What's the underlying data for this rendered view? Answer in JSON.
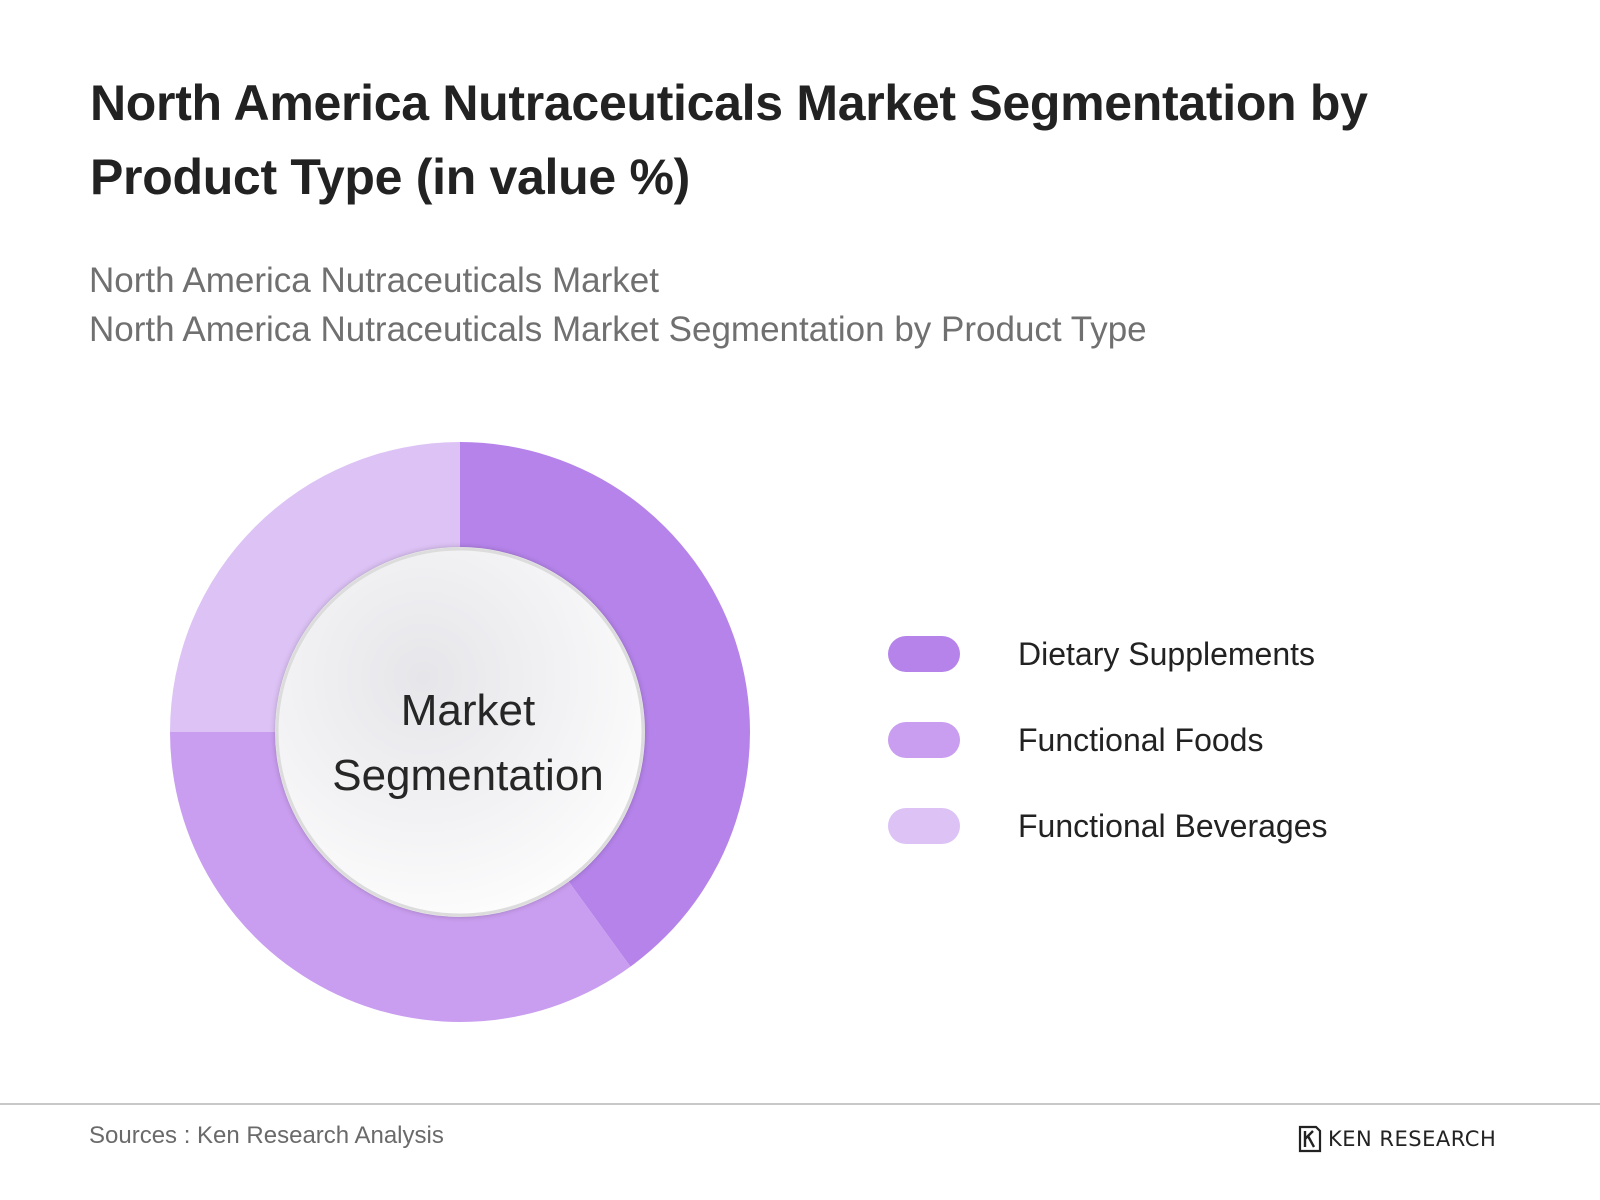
{
  "header": {
    "title": "North America Nutraceuticals Market Segmentation by Product Type (in value %)",
    "subtitle_line1": "North America Nutraceuticals Market",
    "subtitle_line2": "North America Nutraceuticals Market Segmentation by Product Type"
  },
  "chart_data": {
    "type": "pie",
    "center_label_line1": "Market",
    "center_label_line2": "Segmentation",
    "categories": [
      "Dietary Supplements",
      "Functional Foods",
      "Functional Beverages"
    ],
    "values": [
      40,
      35,
      25
    ],
    "colors": [
      "#b583ea",
      "#c99def",
      "#dcc2f5"
    ],
    "legend_position": "right"
  },
  "footer": {
    "sources": "Sources : Ken Research Analysis",
    "logo_text": "KEN RESEARCH",
    "logo_icon": "ken-research-logo-icon"
  }
}
